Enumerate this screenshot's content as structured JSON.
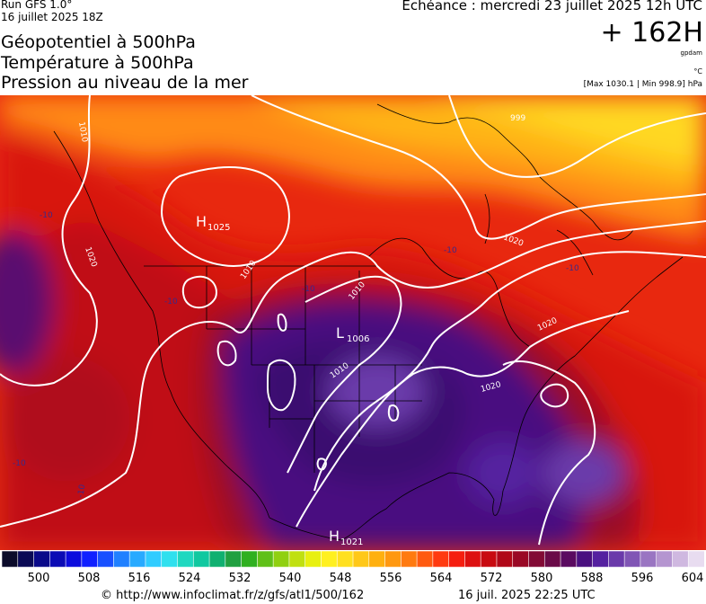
{
  "header": {
    "run_label": "Run GFS 1.0°",
    "run_date": "16 juillet 2025 18Z",
    "titles": [
      "Géopotentiel à 500hPa",
      "Température à 500hPa",
      "Pression au niveau de la mer"
    ],
    "valid_time": "Echéance : mercredi 23 juillet 2025 12h UTC",
    "lead_time": "+ 162H",
    "unit_gpdam": "gpdam",
    "unit_c": "°C",
    "max_min": "[Max 1030.1 | Min 998.9] hPa"
  },
  "map": {
    "pressure_centers": [
      {
        "type": "H",
        "value": "1025"
      },
      {
        "type": "L",
        "value": "1006"
      },
      {
        "type": "H",
        "value": "1021"
      }
    ],
    "isobar_labels": [
      "1010",
      "1020",
      "1010",
      "1010",
      "1010",
      "1020",
      "1020",
      "1020",
      "999"
    ],
    "temp_labels": [
      "-10",
      "-10",
      "-10",
      "-10",
      "-10",
      "-10",
      "-10"
    ]
  },
  "legend": {
    "colors": [
      "#0b0b2a",
      "#0a0a55",
      "#0a0a8a",
      "#0b0bb5",
      "#0c0cdd",
      "#1020ff",
      "#1850ff",
      "#2080ff",
      "#28aaff",
      "#30ccff",
      "#30e0ee",
      "#20d8c0",
      "#10c8a0",
      "#10b070",
      "#20a040",
      "#30b020",
      "#60c018",
      "#90d010",
      "#c0e010",
      "#e8f010",
      "#fff020",
      "#ffe020",
      "#ffc818",
      "#ffb010",
      "#ff9810",
      "#ff7a10",
      "#ff5a10",
      "#ff3a10",
      "#f51e10",
      "#dd1010",
      "#c80a10",
      "#b00818",
      "#9a0825",
      "#820a35",
      "#6a0a48",
      "#5a0a60",
      "#4a1080",
      "#5520a0",
      "#6a3aaa",
      "#8055b5",
      "#9a75c2",
      "#b595d0",
      "#cfb8e0",
      "#e8dcf0"
    ],
    "labels": [
      "500",
      "508",
      "516",
      "524",
      "532",
      "540",
      "548",
      "556",
      "564",
      "572",
      "580",
      "588",
      "596",
      "604"
    ]
  },
  "footer": {
    "credit": "© http://www.infoclimat.fr/z/gfs/atl1/500/162",
    "generated": "16 juil. 2025 22:25 UTC"
  }
}
